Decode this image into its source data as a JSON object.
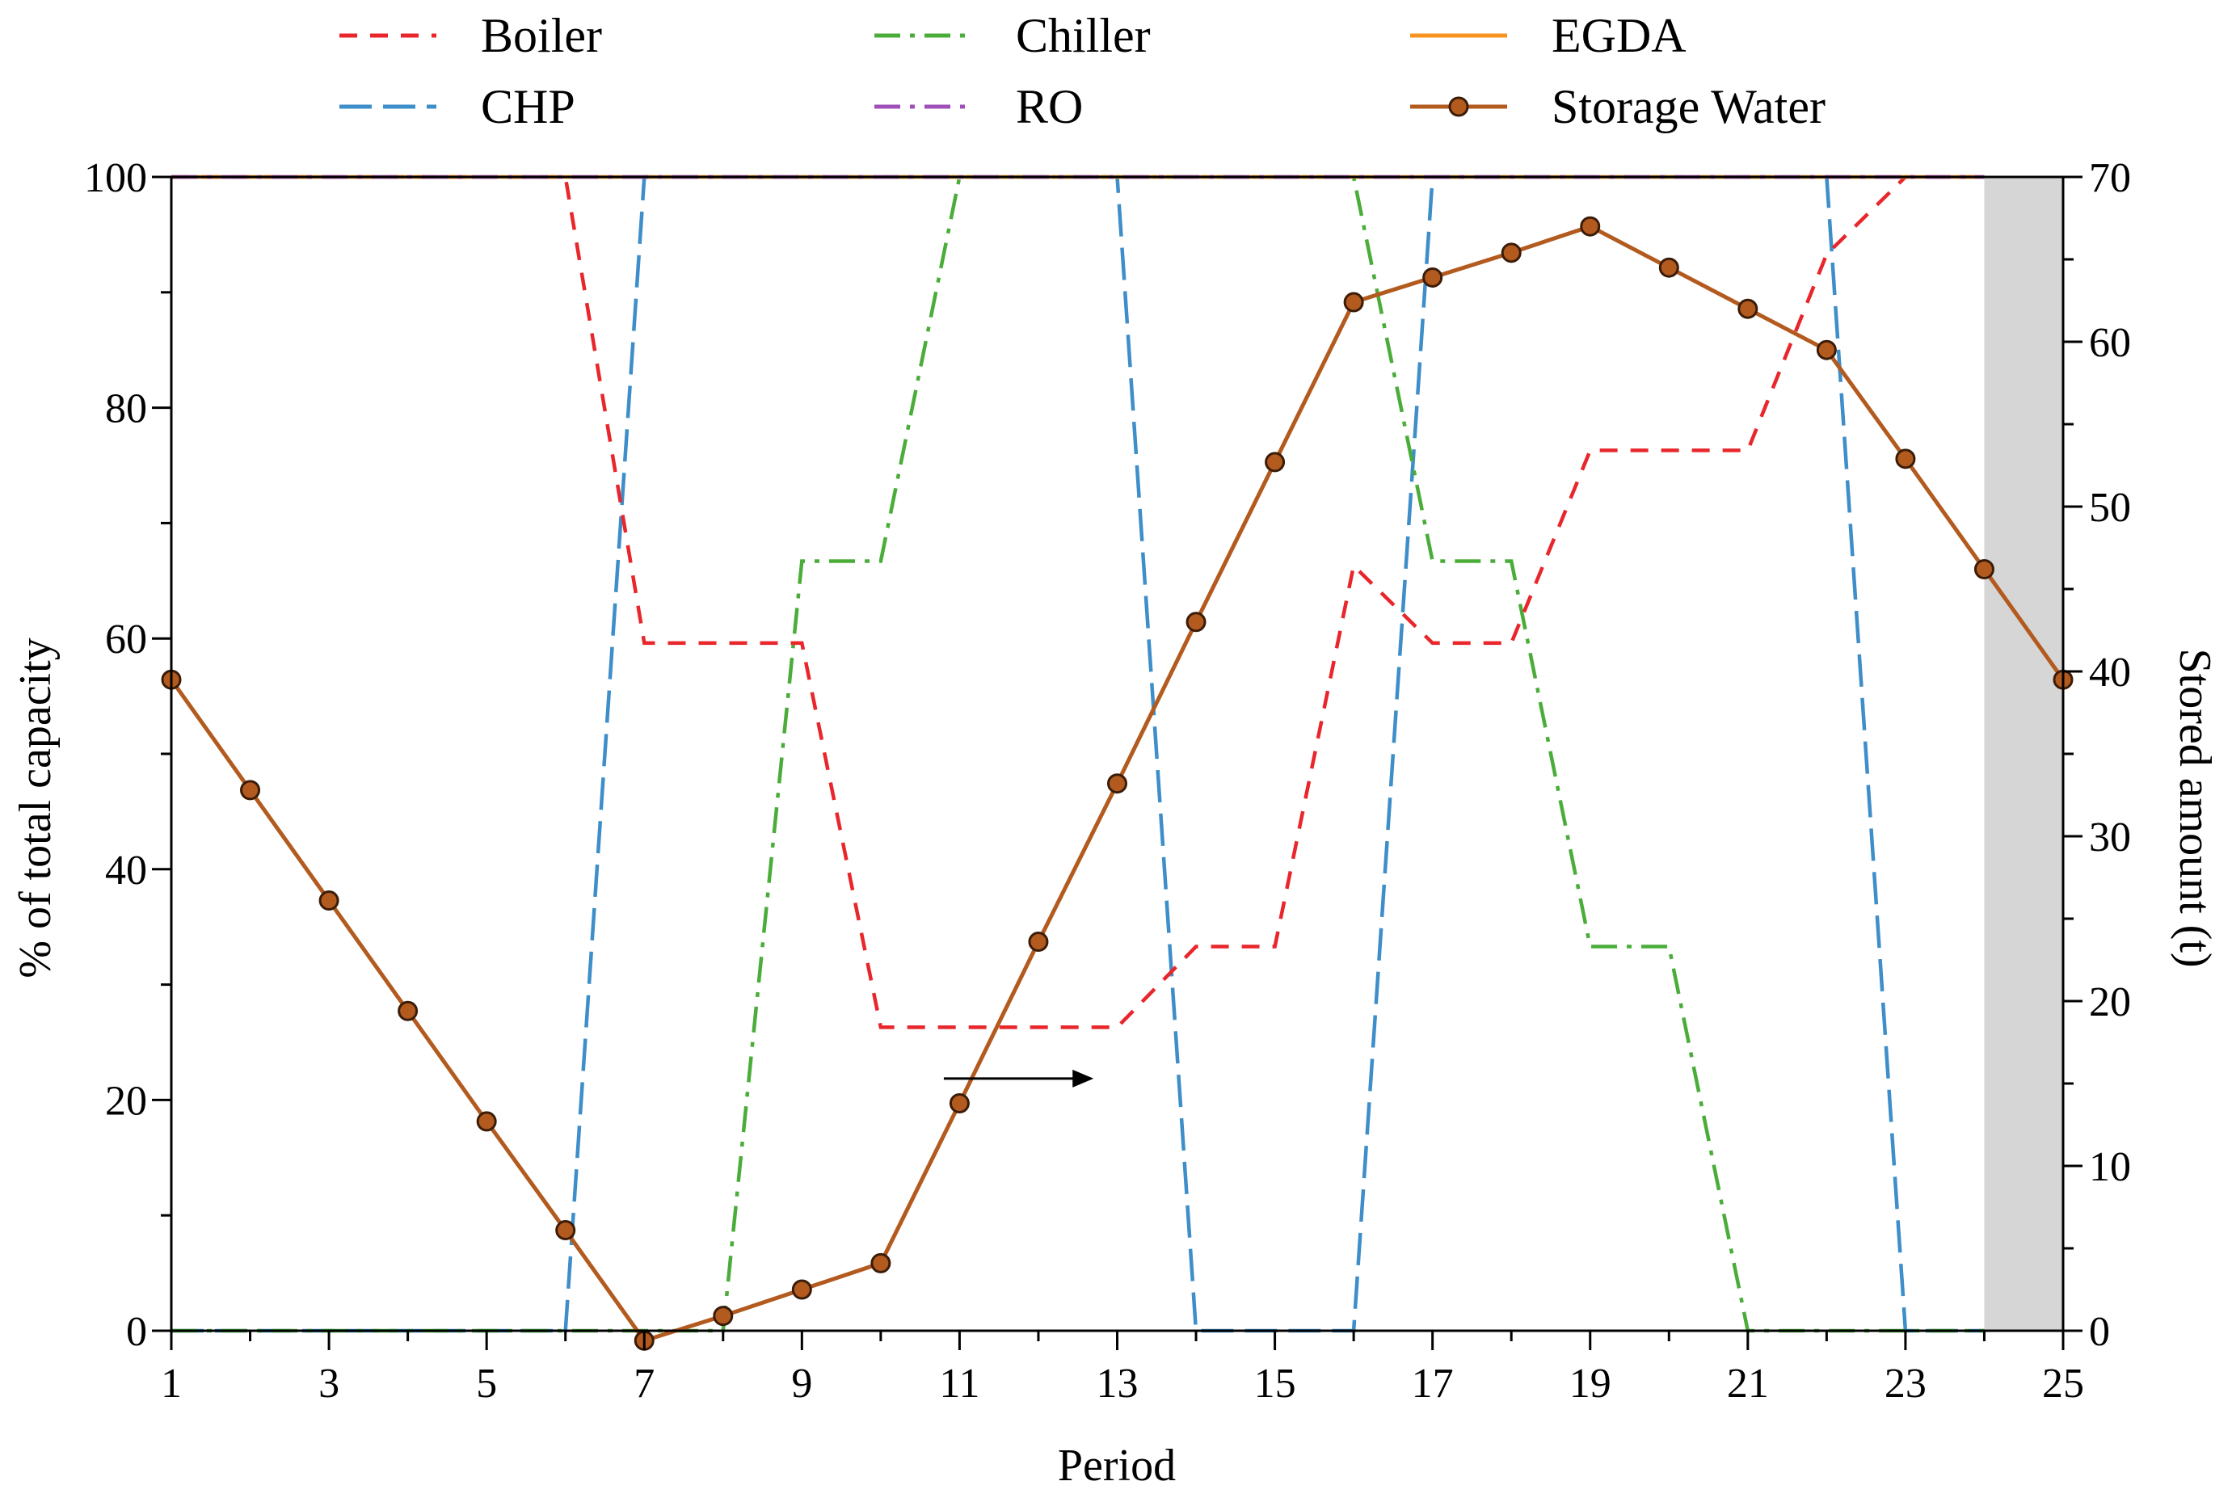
{
  "chart_data": {
    "type": "line",
    "xlabel": "Period",
    "ylabel_left": "% of total capacity",
    "ylabel_right": "Stored amount (t)",
    "xlim": [
      1,
      25
    ],
    "ylim_left": [
      0,
      100
    ],
    "ylim_right": [
      0,
      70
    ],
    "x_ticks": [
      1,
      3,
      5,
      7,
      9,
      11,
      13,
      15,
      17,
      19,
      21,
      23,
      25
    ],
    "y_ticks_left": [
      0,
      20,
      40,
      60,
      80,
      100
    ],
    "y_ticks_right": [
      0,
      10,
      20,
      30,
      40,
      50,
      60,
      70
    ],
    "shaded_region": [
      24,
      25
    ],
    "annotation": {
      "type": "arrow",
      "from": [
        10.8,
        15.3
      ],
      "to": [
        12.7,
        15.3
      ],
      "meaning": "Storage Water refers to right axis"
    },
    "legend_position": "top",
    "series": [
      {
        "name": "Boiler",
        "axis": "left",
        "color": "#e8262b",
        "dash": "dash",
        "x": [
          1,
          2,
          3,
          4,
          5,
          6,
          7,
          8,
          9,
          10,
          11,
          12,
          13,
          14,
          15,
          16,
          17,
          18,
          19,
          20,
          21,
          22,
          23,
          24
        ],
        "values": [
          100,
          100,
          100,
          100,
          100,
          100,
          59.6,
          59.6,
          59.6,
          26.3,
          26.3,
          26.3,
          26.3,
          33.3,
          33.3,
          66.3,
          59.6,
          59.6,
          76.3,
          76.3,
          76.3,
          93.3,
          100,
          100
        ]
      },
      {
        "name": "CHP",
        "axis": "left",
        "color": "#3d8ec9",
        "dash": "longdash",
        "x": [
          1,
          2,
          3,
          4,
          5,
          6,
          7,
          8,
          9,
          10,
          11,
          12,
          13,
          14,
          15,
          16,
          17,
          18,
          19,
          20,
          21,
          22,
          23,
          24
        ],
        "values": [
          0,
          0,
          0,
          0,
          0,
          0,
          100,
          100,
          100,
          100,
          100,
          100,
          100,
          0,
          0,
          0,
          100,
          100,
          100,
          100,
          100,
          100,
          0,
          0
        ]
      },
      {
        "name": "Chiller",
        "axis": "left",
        "color": "#4aad3a",
        "dash": "dashdot",
        "x": [
          1,
          2,
          3,
          4,
          5,
          6,
          7,
          8,
          9,
          10,
          11,
          12,
          13,
          14,
          15,
          16,
          17,
          18,
          19,
          20,
          21,
          22,
          23,
          24
        ],
        "values": [
          0,
          0,
          0,
          0,
          0,
          0,
          0,
          0,
          66.7,
          66.7,
          100,
          100,
          100,
          100,
          100,
          100,
          66.7,
          66.7,
          33.3,
          33.3,
          0,
          0,
          0,
          0
        ]
      },
      {
        "name": "RO",
        "axis": "left",
        "color": "#a04fb8",
        "dash": "dashdot",
        "x": [
          1,
          2,
          3,
          4,
          5,
          6,
          7,
          8,
          9,
          10,
          11,
          12,
          13,
          14,
          15,
          16,
          17,
          18,
          19,
          20,
          21,
          22,
          23,
          24
        ],
        "values": [
          100,
          100,
          100,
          100,
          100,
          100,
          100,
          100,
          100,
          100,
          100,
          100,
          100,
          100,
          100,
          100,
          100,
          100,
          100,
          100,
          100,
          100,
          100,
          100
        ]
      },
      {
        "name": "EGDA",
        "axis": "left",
        "color": "#f7931e",
        "dash": "solid",
        "x": [
          1,
          2,
          3,
          4,
          5,
          6,
          7,
          8,
          9,
          10,
          11,
          12,
          13,
          14,
          15,
          16,
          17,
          18,
          19,
          20,
          21,
          22,
          23,
          24
        ],
        "values": [
          100,
          100,
          100,
          100,
          100,
          100,
          100,
          100,
          100,
          100,
          100,
          100,
          100,
          100,
          100,
          100,
          100,
          100,
          100,
          100,
          100,
          100,
          100,
          100
        ]
      },
      {
        "name": "Storage Water",
        "axis": "right",
        "color": "#b35a1f",
        "dash": "solid",
        "marker": "circle",
        "x": [
          1,
          2,
          3,
          4,
          5,
          6,
          7,
          8,
          9,
          10,
          11,
          12,
          13,
          14,
          15,
          16,
          17,
          18,
          19,
          20,
          21,
          22,
          23,
          24,
          25
        ],
        "values": [
          39.5,
          32.8,
          26.1,
          19.4,
          12.7,
          6.1,
          -0.6,
          0.9,
          2.5,
          4.1,
          13.8,
          23.6,
          33.2,
          43.0,
          52.7,
          62.4,
          63.9,
          65.4,
          67.0,
          64.5,
          62.0,
          59.5,
          52.9,
          46.2,
          39.5
        ]
      }
    ]
  }
}
